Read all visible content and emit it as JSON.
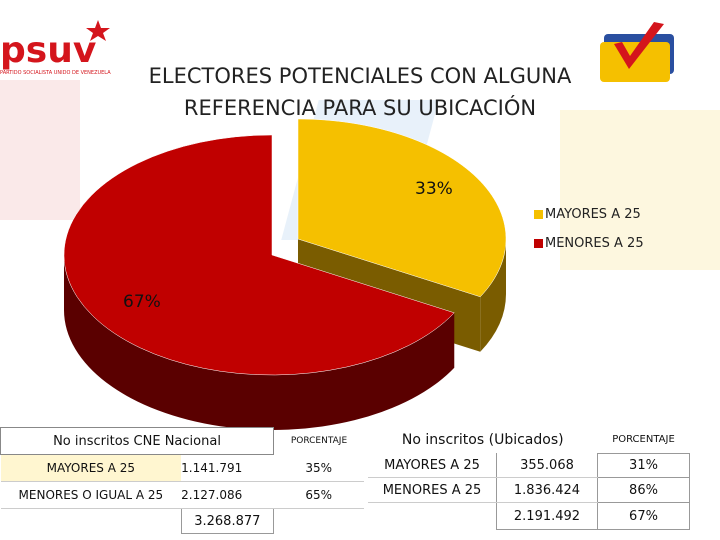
{
  "title_line1": "ELECTORES POTENCIALES CON ALGUNA",
  "title_line2": "REFERENCIA PARA SU UBICACIÓN",
  "logo_left_text": "psuv",
  "logo_left_sub": "PARTIDO SOCIALISTA UNIDO DE VENEZUELA",
  "colors": {
    "mayores": "#f5c000",
    "mayores_side": "#7a5c00",
    "menores": "#c00000",
    "menores_side": "#5a0000",
    "brand_red": "#d4151c"
  },
  "chart_data": {
    "type": "pie",
    "legend_position": "right",
    "slices": [
      {
        "label": "MAYORES  A 25",
        "value": 33,
        "display": "33%"
      },
      {
        "label": "MENORES  A 25",
        "value": 67,
        "display": "67%"
      }
    ]
  },
  "table_left": {
    "header": "No inscritos  CNE Nacional",
    "pct_header": "PORCENTAJE",
    "rows": [
      {
        "label": "MAYORES  A 25",
        "value": "1.141.791",
        "pct": "35%"
      },
      {
        "label": "MENORES O IGUAL A 25",
        "value": "2.127.086",
        "pct": "65%"
      }
    ],
    "total": "3.268.877"
  },
  "table_right": {
    "header": "No inscritos (Ubicados)",
    "pct_header": "PORCENTAJE",
    "rows": [
      {
        "label": "MAYORES  A 25",
        "value": "355.068",
        "pct": "31%"
      },
      {
        "label": "MENORES  A 25",
        "value": "1.836.424",
        "pct": "86%"
      }
    ],
    "total": "2.191.492",
    "total_pct": "67%"
  }
}
